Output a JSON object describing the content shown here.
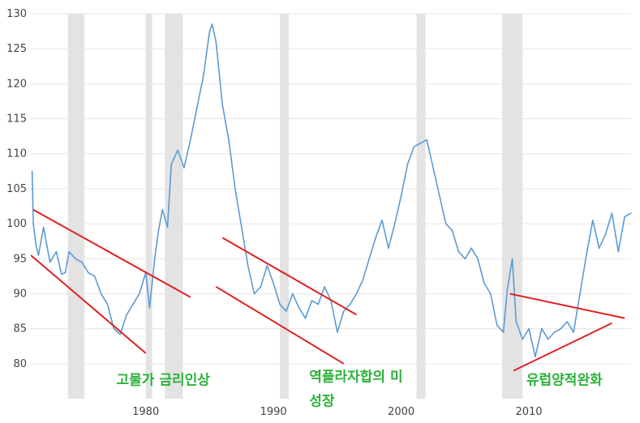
{
  "chart_data": {
    "type": "line",
    "title": "",
    "xlabel": "",
    "ylabel": "",
    "xlim": [
      1971.0,
      2018.0
    ],
    "ylim": [
      75,
      130
    ],
    "y_ticks": [
      80,
      85,
      90,
      95,
      100,
      105,
      110,
      115,
      120,
      125,
      130
    ],
    "x_ticks": [
      1980,
      1990,
      2000,
      2010
    ],
    "grid": "horizontal",
    "colors": {
      "series": "#5b9bd5",
      "trendline": "#e02020",
      "recession": "#e3e3e3",
      "annotation": "#2bb23a",
      "grid": "#e6e6e6"
    },
    "recessions": [
      [
        1973.9,
        1975.2
      ],
      [
        1980.0,
        1980.5
      ],
      [
        1981.5,
        1982.9
      ],
      [
        1990.5,
        1991.2
      ],
      [
        2001.2,
        2001.9
      ],
      [
        2007.9,
        2009.5
      ]
    ],
    "series": [
      {
        "x": [
          1971.1,
          1971.2,
          1971.4,
          1971.6,
          1972.0,
          1972.5,
          1973.0,
          1973.4,
          1973.7,
          1974.0,
          1974.5,
          1975.0,
          1975.5,
          1976.0,
          1976.5,
          1977.0,
          1977.5,
          1978.0,
          1978.5,
          1979.0,
          1979.5,
          1980.0,
          1980.3,
          1980.7,
          1981.0,
          1981.3,
          1981.7,
          1982.0,
          1982.5,
          1983.0,
          1983.5,
          1984.0,
          1984.5,
          1985.0,
          1985.2,
          1985.5,
          1986.0,
          1986.5,
          1987.0,
          1987.5,
          1988.0,
          1988.5,
          1989.0,
          1989.5,
          1990.0,
          1990.5,
          1991.0,
          1991.5,
          1992.0,
          1992.5,
          1993.0,
          1993.5,
          1994.0,
          1994.5,
          1995.0,
          1995.5,
          1996.0,
          1996.5,
          1997.0,
          1997.5,
          1998.0,
          1998.5,
          1999.0,
          1999.5,
          2000.0,
          2000.5,
          2001.0,
          2001.5,
          2002.0,
          2002.5,
          2003.0,
          2003.5,
          2004.0,
          2004.5,
          2005.0,
          2005.5,
          2006.0,
          2006.5,
          2007.0,
          2007.5,
          2008.0,
          2008.3,
          2008.7,
          2009.0,
          2009.5,
          2010.0,
          2010.5,
          2011.0,
          2011.5,
          2012.0,
          2012.5,
          2013.0,
          2013.5,
          2014.0,
          2014.5,
          2015.0,
          2015.5,
          2016.0,
          2016.5,
          2017.0,
          2017.5,
          2018.0
        ],
        "values": [
          107.5,
          100.0,
          97.0,
          95.5,
          99.5,
          94.5,
          96.0,
          92.8,
          93.0,
          96.0,
          95.0,
          94.5,
          93.0,
          92.5,
          90.0,
          88.5,
          85.0,
          84.2,
          87.0,
          88.5,
          90.0,
          93.0,
          88.0,
          95.0,
          99.0,
          102.0,
          99.5,
          108.5,
          110.5,
          108.0,
          112.0,
          116.5,
          121.0,
          127.5,
          128.5,
          126.0,
          117.0,
          112.0,
          105.0,
          99.5,
          94.0,
          90.0,
          91.0,
          94.0,
          91.5,
          88.5,
          87.5,
          90.0,
          88.0,
          86.5,
          89.0,
          88.5,
          91.0,
          89.0,
          84.5,
          87.5,
          88.5,
          90.0,
          92.0,
          95.0,
          98.0,
          100.5,
          96.5,
          100.0,
          104.0,
          108.5,
          111.0,
          111.5,
          112.0,
          108.0,
          104.0,
          100.0,
          99.0,
          96.0,
          95.0,
          96.5,
          95.0,
          91.5,
          90.0,
          85.5,
          84.5,
          90.5,
          95.0,
          86.0,
          83.5,
          85.0,
          81.0,
          85.0,
          83.5,
          84.5,
          85.0,
          86.0,
          84.5,
          90.0,
          95.5,
          100.5,
          96.5,
          98.5,
          101.5,
          96.0,
          101.0,
          101.5
        ]
      }
    ],
    "trendlines": [
      [
        [
          1971.2,
          102.0
        ],
        [
          1983.5,
          89.5
        ]
      ],
      [
        [
          1971.0,
          95.5
        ],
        [
          1980.0,
          81.5
        ]
      ],
      [
        [
          1986.0,
          98.0
        ],
        [
          1996.5,
          87.0
        ]
      ],
      [
        [
          1985.5,
          91.0
        ],
        [
          1995.5,
          80.0
        ]
      ],
      [
        [
          2008.5,
          90.0
        ],
        [
          2017.5,
          86.5
        ]
      ],
      [
        [
          2008.8,
          79.0
        ],
        [
          2016.5,
          85.8
        ]
      ]
    ],
    "annotations": [
      {
        "text": "고물가 금리인상",
        "x": 1977.7,
        "y": 77.0
      },
      {
        "text": "역플라자합의 미",
        "x": 1992.8,
        "y": 77.5
      },
      {
        "text": "성장",
        "x": 1992.8,
        "y": 74.0
      },
      {
        "text": "유럽양적완화",
        "x": 2009.8,
        "y": 77.0
      }
    ]
  }
}
